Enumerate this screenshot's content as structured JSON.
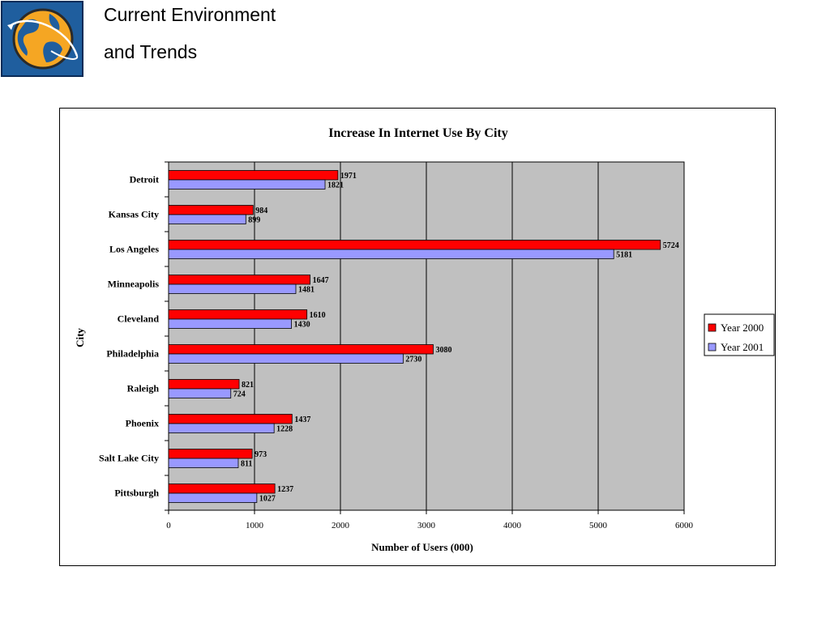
{
  "header": {
    "title_line1": "Current Environment",
    "title_line2": "and Trends",
    "logo_icon": "globe-icon"
  },
  "colors": {
    "series_2000": "#ff0000",
    "series_2001": "#9999ff",
    "plot_background": "#c0c0c0"
  },
  "chart_data": {
    "type": "bar",
    "orientation": "horizontal",
    "title": "Increase In Internet Use By City",
    "xlabel": "Number of Users (000)",
    "ylabel": "City",
    "xlim": [
      0,
      6000
    ],
    "xticks": [
      0,
      1000,
      2000,
      3000,
      4000,
      5000,
      6000
    ],
    "grid": true,
    "legend_position": "right",
    "categories": [
      "Detroit",
      "Kansas City",
      "Los Angeles",
      "Minneapolis",
      "Cleveland",
      "Philadelphia",
      "Raleigh",
      "Phoenix",
      "Salt Lake City",
      "Pittsburgh"
    ],
    "series": [
      {
        "name": "Year 2000",
        "values": [
          1971,
          984,
          5724,
          1647,
          1610,
          3080,
          821,
          1437,
          973,
          1237
        ]
      },
      {
        "name": "Year 2001",
        "values": [
          1821,
          899,
          5181,
          1481,
          1430,
          2730,
          724,
          1228,
          811,
          1027
        ]
      }
    ]
  }
}
